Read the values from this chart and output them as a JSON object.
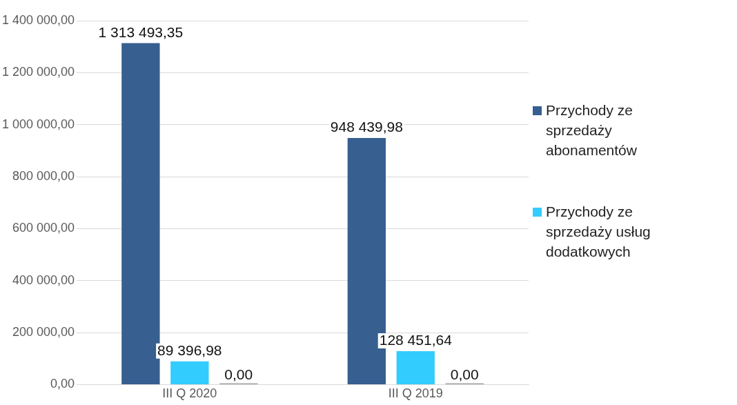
{
  "chart_data": {
    "type": "bar",
    "categories": [
      "III Q 2020",
      "III Q 2019"
    ],
    "series": [
      {
        "name": "Przychody ze sprzedaży abonamentów",
        "color": "#375f8f",
        "values": [
          1313493.35,
          948439.98
        ],
        "value_labels": [
          "1 313 493,35",
          "948 439,98"
        ]
      },
      {
        "name": "Przychody ze sprzedaży usług dodatkowych",
        "color": "#33ccff",
        "values": [
          89396.98,
          128451.64
        ],
        "value_labels": [
          "89 396,98",
          "128 451,64"
        ]
      },
      {
        "color": "#a5a5a5",
        "values": [
          0,
          0
        ],
        "value_labels": [
          "0,00",
          "0,00"
        ]
      }
    ],
    "ylim": [
      0,
      1400000
    ],
    "yticks": [
      {
        "value": 0,
        "label": "0,00"
      },
      {
        "value": 200000,
        "label": "200 000,00"
      },
      {
        "value": 400000,
        "label": "400 000,00"
      },
      {
        "value": 600000,
        "label": "600 000,00"
      },
      {
        "value": 800000,
        "label": "800 000,00"
      },
      {
        "value": 1000000,
        "label": "1 000 000,00"
      },
      {
        "value": 1200000,
        "label": "1 200 000,00"
      },
      {
        "value": 1400000,
        "label": "1 400 000,00"
      }
    ],
    "grid": "y",
    "legend": "right"
  }
}
